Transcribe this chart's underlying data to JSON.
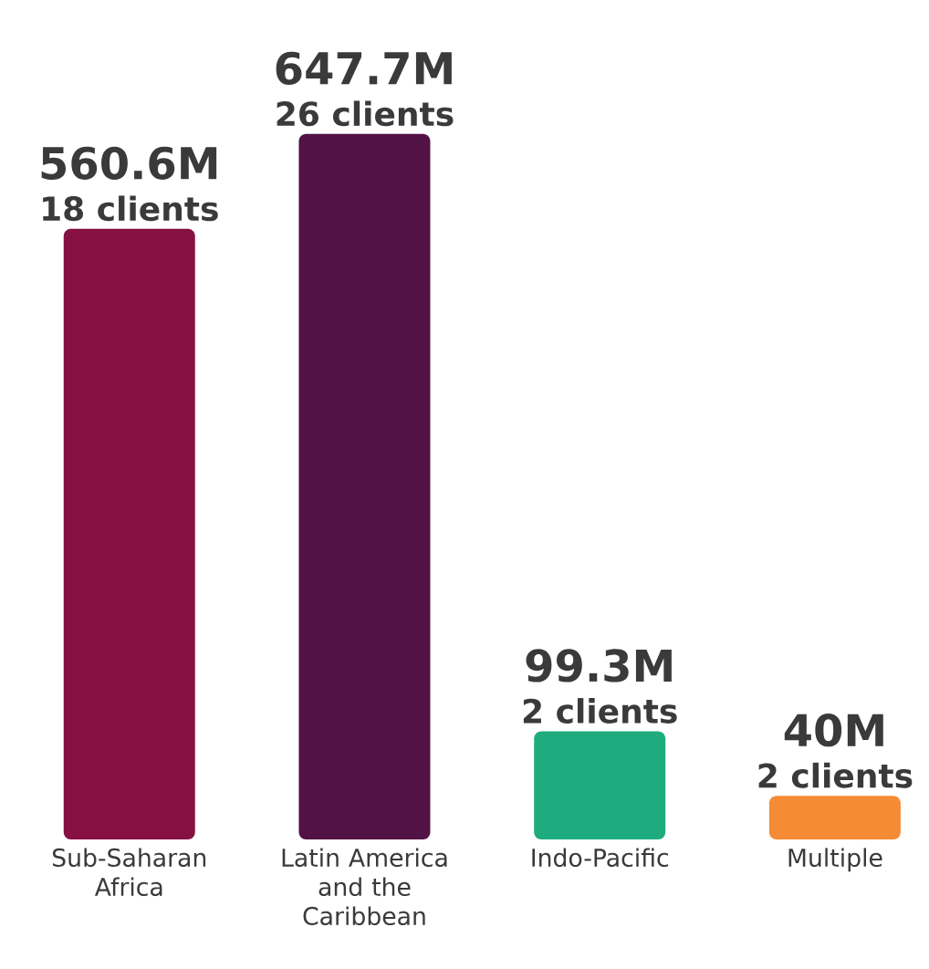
{
  "chart_data": {
    "type": "bar",
    "categories": [
      "Sub-Saharan Africa",
      "Latin America and the Caribbean",
      "Indo-Pacific",
      "Multiple"
    ],
    "values": [
      560.6,
      647.7,
      99.3,
      40
    ],
    "colors": [
      "#871042",
      "#521244",
      "#1eac7e",
      "#f58b35"
    ],
    "value_labels": [
      "560.6M",
      "647.7M",
      "99.3M",
      "40M"
    ],
    "annotations": [
      {
        "text": "18 clients",
        "x": "Sub-Saharan Africa",
        "y": 560.6
      },
      {
        "text": "26 clients",
        "x": "Latin America and the Caribbean",
        "y": 647.7
      },
      {
        "text": "2 clients",
        "x": "Indo-Pacific",
        "y": 99.3
      },
      {
        "text": "2 clients",
        "x": "Multiple",
        "y": 40
      }
    ]
  }
}
